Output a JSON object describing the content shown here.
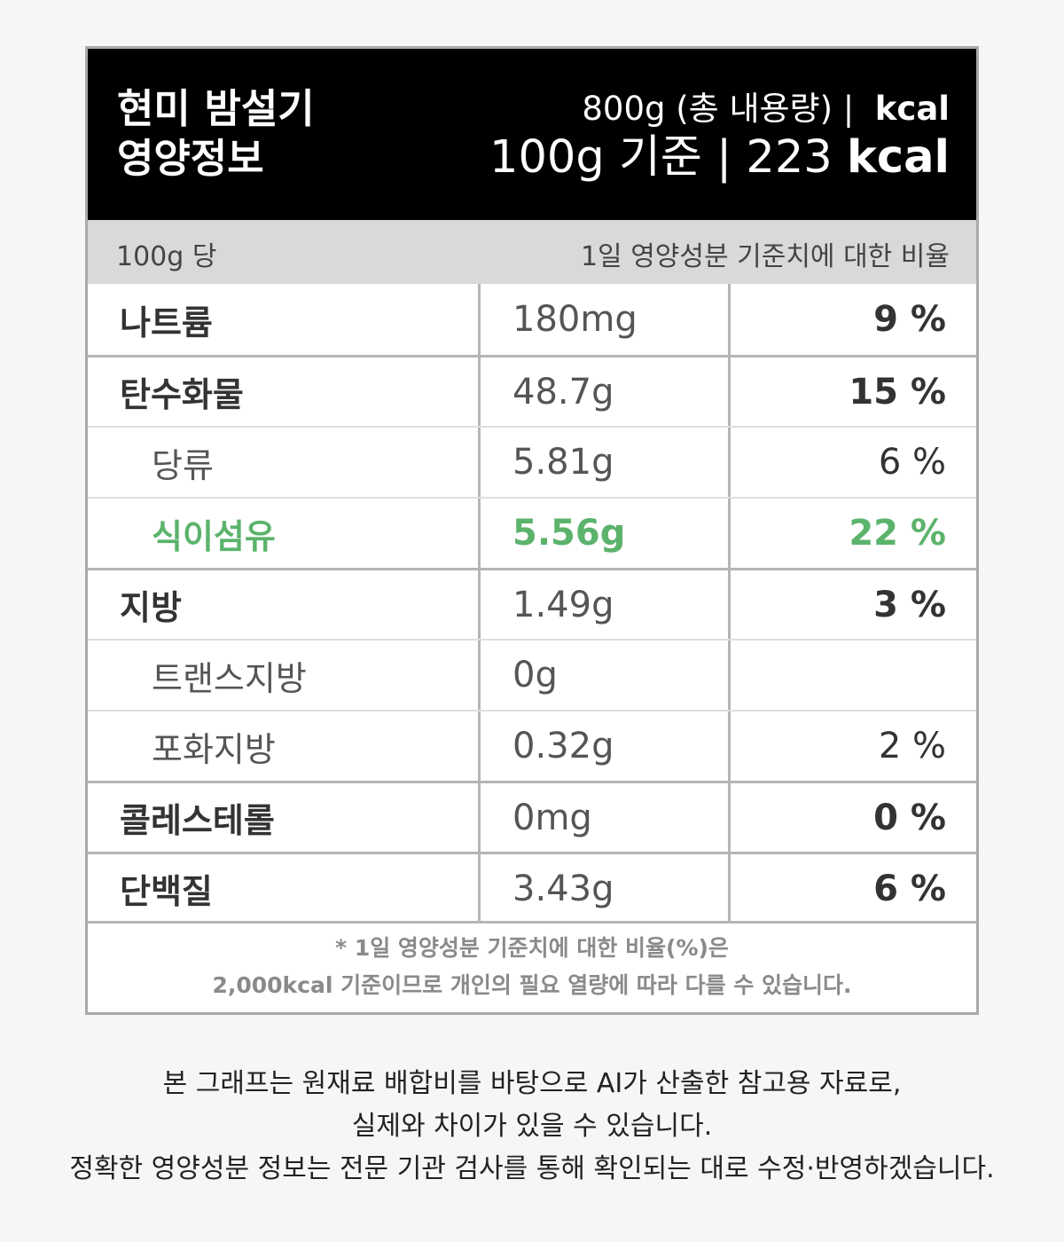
{
  "header": {
    "title_line1": "현미 밤설기",
    "title_line2": "영양정보",
    "total_text": "800g (총 내용량) |",
    "total_kcal_unit": "kcal",
    "per_text": "100g 기준 | 223",
    "per_kcal_unit": "kcal"
  },
  "subheader": {
    "left": "100g 당",
    "right": "1일 영양성분 기준치에 대한 비율"
  },
  "rows": [
    {
      "name": "나트륨",
      "value": "180mg",
      "percent": "9 %"
    },
    {
      "name": "탄수화물",
      "value": "48.7g",
      "percent": "15 %"
    },
    {
      "name": "당류",
      "value": "5.81g",
      "percent": "6 %"
    },
    {
      "name": "식이섬유",
      "value": "5.56g",
      "percent": "22 %"
    },
    {
      "name": "지방",
      "value": "1.49g",
      "percent": "3 %"
    },
    {
      "name": "트랜스지방",
      "value": "0g",
      "percent": ""
    },
    {
      "name": "포화지방",
      "value": "0.32g",
      "percent": "2 %"
    },
    {
      "name": "콜레스테롤",
      "value": "0mg",
      "percent": "0 %"
    },
    {
      "name": "단백질",
      "value": "3.43g",
      "percent": "6 %"
    }
  ],
  "footnote": {
    "line1": "* 1일 영양성분 기준치에 대한 비율(%)은",
    "line2": "2,000kcal 기준이므로 개인의 필요 열량에 따라 다를 수 있습니다."
  },
  "disclaimer": {
    "line1": "본 그래프는 원재료 배합비를 바탕으로 AI가 산출한 참고용 자료로,",
    "line2": "실제와 차이가 있을 수 있습니다.",
    "line3": "정확한 영양성분 정보는 전문 기관 검사를 통해 확인되는 대로 수정·반영하겠습니다."
  },
  "colors": {
    "header_bg": "#000000",
    "subheader_bg": "#d9d9d9",
    "highlight_green": "#5cb36c"
  }
}
